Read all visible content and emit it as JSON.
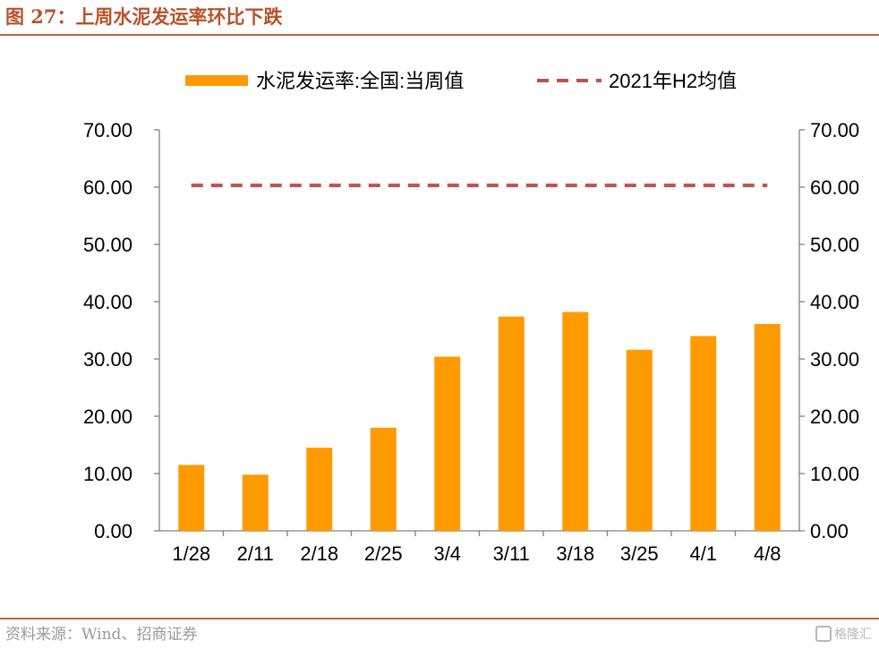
{
  "figure": {
    "title": "图 27：上周水泥发运率环比下跌",
    "source": "资料来源：Wind、招商证券",
    "watermark": "格隆汇"
  },
  "colors": {
    "bar": "#FF9A00",
    "dashed_line": "#C0504D",
    "title": "#B5532B",
    "rule": "#C0623A",
    "axis": "#808080"
  },
  "chart_data": {
    "type": "bar",
    "categories": [
      "1/28",
      "2/11",
      "2/18",
      "2/25",
      "3/4",
      "3/11",
      "3/18",
      "3/25",
      "4/1",
      "4/8"
    ],
    "series": [
      {
        "name": "水泥发运率:全国:当周值",
        "kind": "bar",
        "values": [
          11.5,
          9.8,
          14.5,
          18.0,
          30.4,
          37.4,
          38.2,
          31.6,
          34.0,
          36.1
        ]
      },
      {
        "name": "2021年H2均值",
        "kind": "dashed-line",
        "values": [
          60.3,
          60.3,
          60.3,
          60.3,
          60.3,
          60.3,
          60.3,
          60.3,
          60.3,
          60.3
        ]
      }
    ],
    "ylim": [
      0,
      70
    ],
    "yticks": [
      "0.00",
      "10.00",
      "20.00",
      "30.00",
      "40.00",
      "50.00",
      "60.00",
      "70.00"
    ],
    "y2ticks": [
      "0.00",
      "10.00",
      "20.00",
      "30.00",
      "40.00",
      "50.00",
      "60.00",
      "70.00"
    ],
    "grid": false,
    "legend_position": "top"
  }
}
